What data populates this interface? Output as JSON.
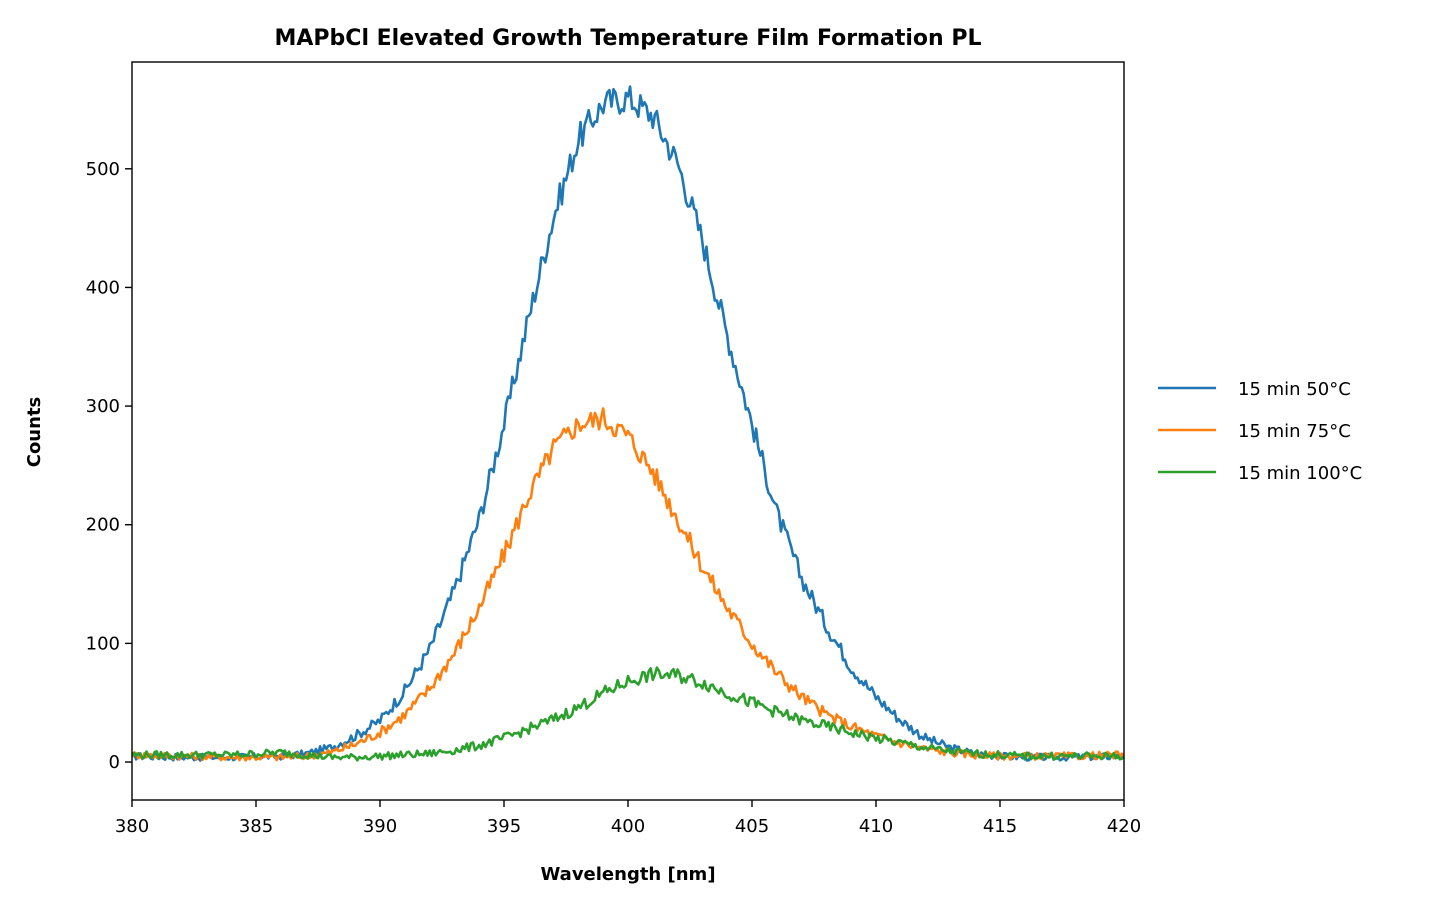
{
  "chart_data": {
    "type": "line",
    "title": "MAPbCl Elevated Growth Temperature Film Formation PL",
    "xlabel": "Wavelength [nm]",
    "ylabel": "Counts",
    "xlim": [
      380,
      420
    ],
    "ylim": [
      -32,
      590
    ],
    "xticks": [
      380,
      385,
      390,
      395,
      400,
      405,
      410,
      415,
      420
    ],
    "yticks": [
      0,
      100,
      200,
      300,
      400,
      500
    ],
    "grid": false,
    "legend_position": "right",
    "series": [
      {
        "name": "15 min 50°C",
        "color": "#1f77b4",
        "x": [
          380,
          382,
          384,
          386,
          387,
          388,
          389,
          390,
          391,
          392,
          393,
          394,
          395,
          396,
          397,
          398,
          399,
          400,
          401,
          402,
          403,
          404,
          405,
          406,
          407,
          408,
          409,
          410,
          411,
          412,
          413,
          414,
          415,
          416,
          417,
          418,
          420
        ],
        "y": [
          5,
          4,
          4,
          5,
          7,
          12,
          22,
          35,
          60,
          95,
          145,
          205,
          285,
          375,
          460,
          525,
          555,
          560,
          545,
          505,
          440,
          360,
          285,
          210,
          155,
          115,
          80,
          55,
          35,
          20,
          12,
          7,
          5,
          4,
          4,
          4,
          5
        ]
      },
      {
        "name": "15 min 75°C",
        "color": "#ff7f0e",
        "x": [
          380,
          382,
          384,
          386,
          387,
          388,
          389,
          390,
          391,
          392,
          393,
          394,
          395,
          396,
          397,
          398,
          399,
          400,
          401,
          402,
          403,
          404,
          405,
          406,
          407,
          408,
          409,
          410,
          411,
          412,
          413,
          414,
          415,
          416,
          417,
          418,
          420
        ],
        "y": [
          6,
          5,
          4,
          4,
          5,
          8,
          15,
          25,
          40,
          62,
          92,
          130,
          175,
          225,
          265,
          285,
          290,
          275,
          245,
          205,
          165,
          130,
          100,
          75,
          55,
          40,
          30,
          22,
          16,
          11,
          8,
          6,
          5,
          5,
          5,
          5,
          6
        ]
      },
      {
        "name": "15 min 100°C",
        "color": "#2ca02c",
        "x": [
          380,
          382,
          384,
          386,
          387,
          388,
          389,
          390,
          391,
          392,
          393,
          394,
          395,
          396,
          397,
          398,
          399,
          400,
          401,
          402,
          403,
          404,
          405,
          406,
          407,
          408,
          409,
          410,
          411,
          412,
          413,
          414,
          415,
          416,
          417,
          418,
          420
        ],
        "y": [
          6,
          6,
          6,
          8,
          6,
          4,
          4,
          5,
          6,
          7,
          10,
          14,
          20,
          28,
          36,
          46,
          58,
          68,
          74,
          73,
          67,
          58,
          50,
          42,
          35,
          30,
          25,
          20,
          16,
          12,
          9,
          7,
          6,
          5,
          5,
          5,
          5
        ]
      }
    ]
  }
}
